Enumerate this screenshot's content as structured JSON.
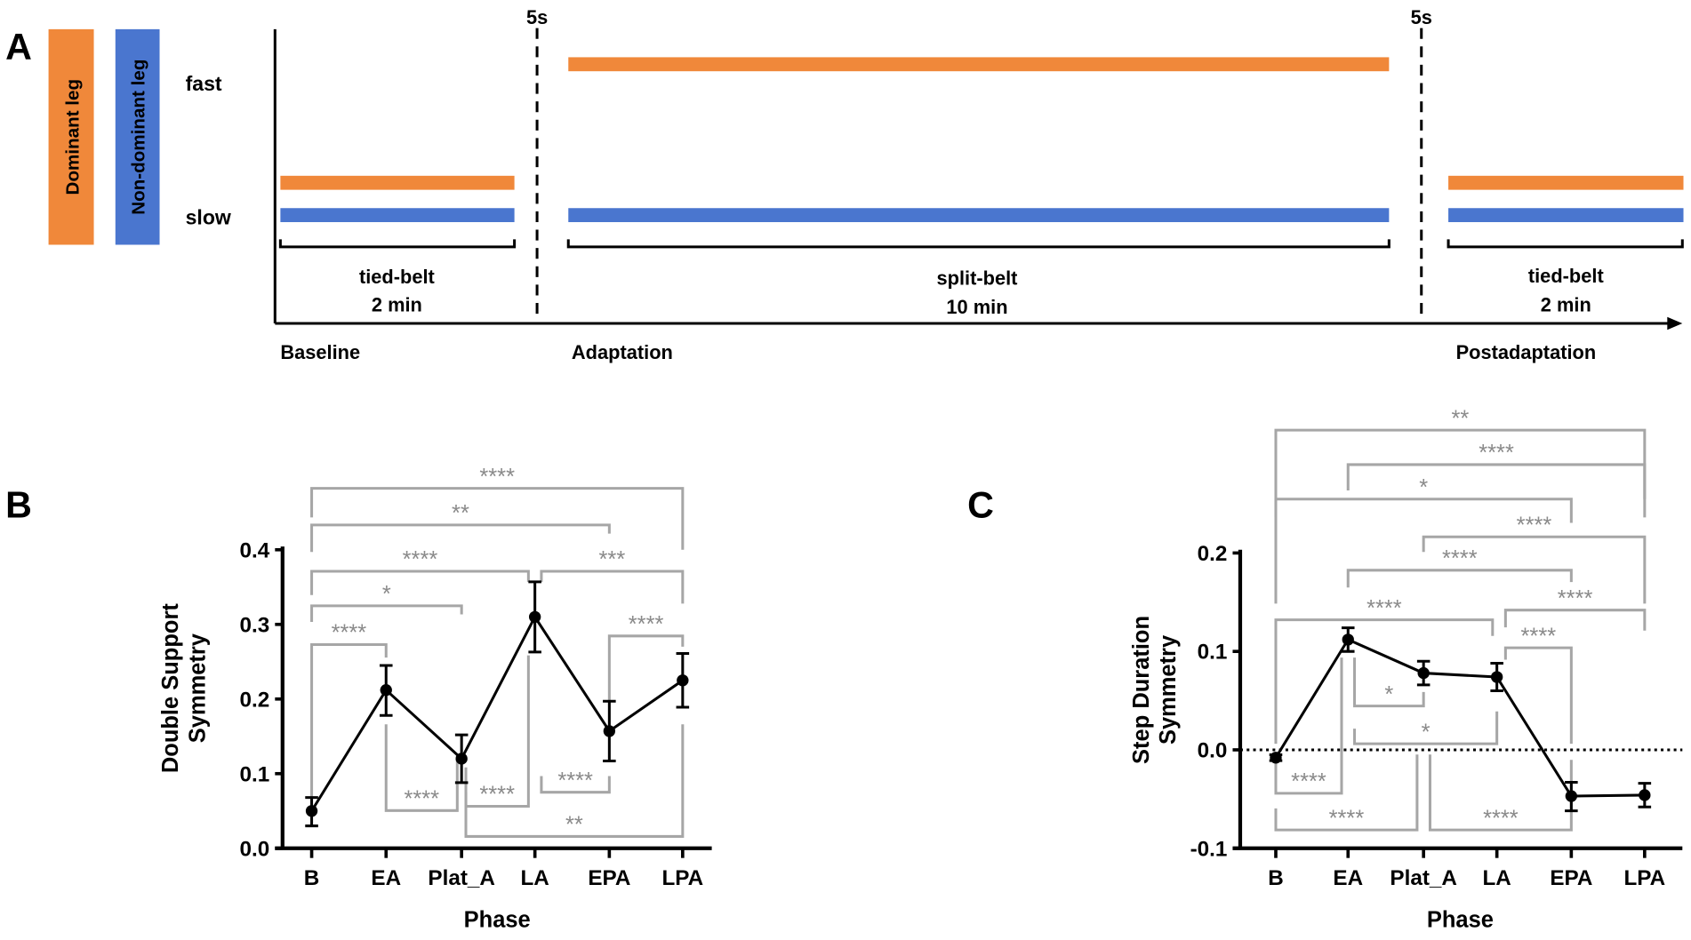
{
  "panel_a": {
    "label": "A",
    "legend": [
      {
        "text": "Dominant leg",
        "color": "#f0883a"
      },
      {
        "text": "Non-dominant leg",
        "color": "#4a76cf"
      }
    ],
    "speeds": {
      "fast": "fast",
      "slow": "slow"
    },
    "transition": "5s",
    "segments": [
      {
        "name": "tied-belt",
        "duration": "2 min",
        "phase": "Baseline"
      },
      {
        "name": "split-belt",
        "duration": "10 min",
        "phase": "Adaptation"
      },
      {
        "name": "tied-belt",
        "duration": "2 min",
        "phase": "Postadaptation"
      }
    ]
  },
  "chart_data": [
    {
      "panel": "B",
      "type": "line",
      "xlabel": "Phase",
      "ylabel": "Double Support Symmetry",
      "categories": [
        "B",
        "EA",
        "Plat_A",
        "LA",
        "EPA",
        "LPA"
      ],
      "values": [
        0.05,
        0.212,
        0.12,
        0.31,
        0.157,
        0.225
      ],
      "error_low": [
        0.03,
        0.178,
        0.088,
        0.263,
        0.117,
        0.189
      ],
      "error_high": [
        0.068,
        0.245,
        0.152,
        0.357,
        0.197,
        0.261
      ],
      "ylim": [
        0,
        0.4
      ],
      "yticks": [
        "0.0",
        "0.1",
        "0.2",
        "0.3",
        "0.4"
      ],
      "comparisons": [
        {
          "from": "B",
          "to": "LPA",
          "label": "****"
        },
        {
          "from": "B",
          "to": "EPA",
          "label": "**"
        },
        {
          "from": "B",
          "to": "LA",
          "label": "****"
        },
        {
          "from": "LA",
          "to": "LPA",
          "label": "***"
        },
        {
          "from": "B",
          "to": "Plat_A",
          "label": "*"
        },
        {
          "from": "B",
          "to": "EA",
          "label": "****"
        },
        {
          "from": "EPA",
          "to": "LPA",
          "label": "****"
        },
        {
          "from": "EA",
          "to": "Plat_A",
          "label": "****"
        },
        {
          "from": "Plat_A",
          "to": "LA",
          "label": "****"
        },
        {
          "from": "LA",
          "to": "EPA",
          "label": "****"
        },
        {
          "from": "Plat_A",
          "to": "LPA",
          "label": "**"
        }
      ]
    },
    {
      "panel": "C",
      "type": "line",
      "xlabel": "Phase",
      "ylabel": "Step Duration Symmetry",
      "categories": [
        "B",
        "EA",
        "Plat_A",
        "LA",
        "EPA",
        "LPA"
      ],
      "values": [
        -0.008,
        0.112,
        0.078,
        0.074,
        -0.047,
        -0.046
      ],
      "error_low": [
        -0.011,
        0.1,
        0.066,
        0.06,
        -0.062,
        -0.058
      ],
      "error_high": [
        -0.005,
        0.124,
        0.09,
        0.088,
        -0.033,
        -0.034
      ],
      "ylim": [
        -0.1,
        0.2
      ],
      "yticks": [
        "-0.1",
        "0.0",
        "0.1",
        "0.2"
      ],
      "reference_line": 0,
      "comparisons": [
        {
          "from": "B",
          "to": "LPA",
          "label": "**"
        },
        {
          "from": "EA",
          "to": "LPA",
          "label": "****"
        },
        {
          "from": "B",
          "to": "EPA",
          "label": "*"
        },
        {
          "from": "Plat_A",
          "to": "LPA",
          "label": "****"
        },
        {
          "from": "EA",
          "to": "EPA",
          "label": "****"
        },
        {
          "from": "LA",
          "to": "LPA",
          "label": "****"
        },
        {
          "from": "B",
          "to": "LA",
          "label": "****"
        },
        {
          "from": "LA",
          "to": "EPA",
          "label": "****"
        },
        {
          "from": "EA",
          "to": "Plat_A",
          "label": "*"
        },
        {
          "from": "EA",
          "to": "LA",
          "label": "*"
        },
        {
          "from": "B",
          "to": "EA",
          "label": "****"
        },
        {
          "from": "B",
          "to": "Plat_A",
          "label": "****"
        },
        {
          "from": "Plat_A",
          "to": "EPA",
          "label": "****"
        }
      ]
    }
  ]
}
